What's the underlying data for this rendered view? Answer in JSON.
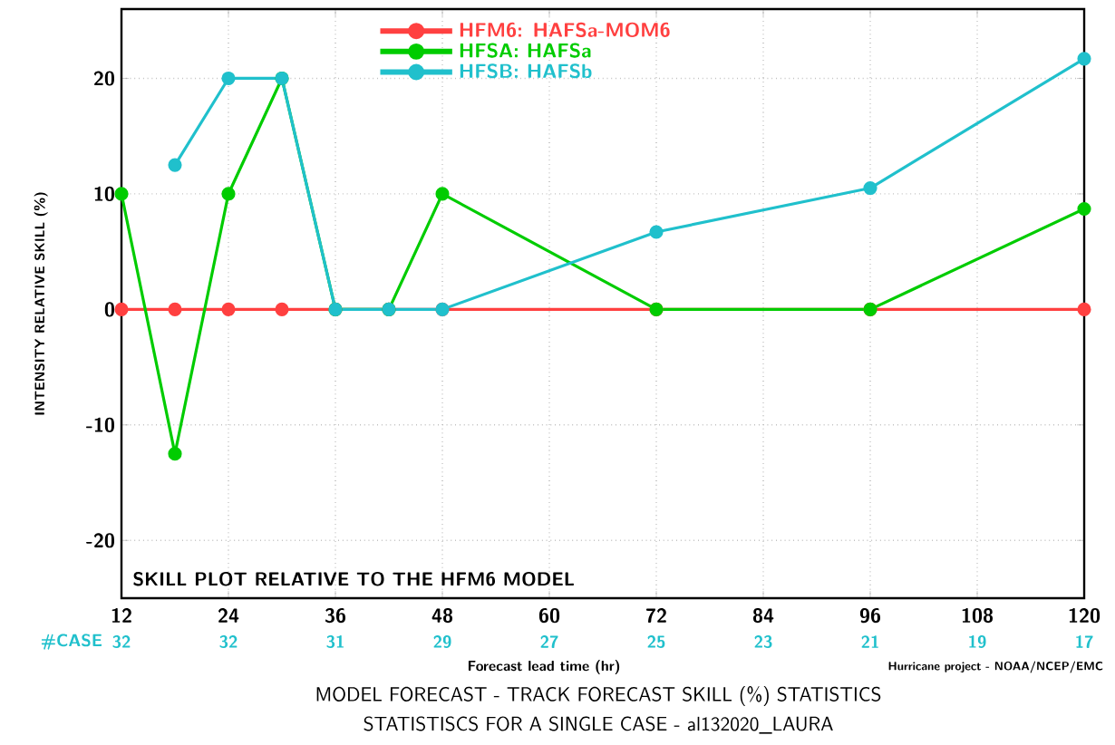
{
  "chart_data": {
    "type": "line",
    "title": "MODEL FORECAST - TRACK FORECAST SKILL (%) STATISTICS",
    "subtitle": "STATISTISCS FOR A SINGLE CASE - al132020_LAURA",
    "xlabel": "Forecast lead time (hr)",
    "ylabel": "INTENSITY RELATIVE SKILL (%)",
    "x": [
      12,
      18,
      24,
      30,
      36,
      42,
      48,
      72,
      96,
      120
    ],
    "series": [
      {
        "name": "HFM6: HAFSa-MOM6",
        "color": "#ff4040",
        "values": [
          0,
          0,
          0,
          0,
          0,
          0,
          0,
          0,
          0,
          0
        ]
      },
      {
        "name": "HFSA: HAFSa",
        "color": "#00cc00",
        "values": [
          10,
          -12.5,
          10,
          20,
          0,
          0,
          10,
          0,
          0,
          8.7
        ]
      },
      {
        "name": "HFSB: HAFSb",
        "color": "#20c0cc",
        "values": [
          null,
          12.5,
          20,
          20,
          0,
          0,
          0,
          6.7,
          10.5,
          21.7
        ]
      }
    ],
    "xlim": [
      12,
      120
    ],
    "ylim": [
      -25,
      26
    ],
    "xticks": [
      12,
      24,
      36,
      48,
      60,
      72,
      84,
      96,
      108,
      120
    ],
    "yticks": [
      -20,
      -10,
      0,
      10,
      20
    ],
    "annotations": [
      "SKILL PLOT RELATIVE TO THE HFM6 MODEL",
      "Hurricane project - NOAA/NCEP/EMC",
      "#CASE",
      "32",
      "32",
      "31",
      "29",
      "27",
      "25",
      "23",
      "21",
      "19",
      "17"
    ],
    "grid": true,
    "legend": "top left",
    "marker": "circle",
    "line_style": "solid"
  }
}
